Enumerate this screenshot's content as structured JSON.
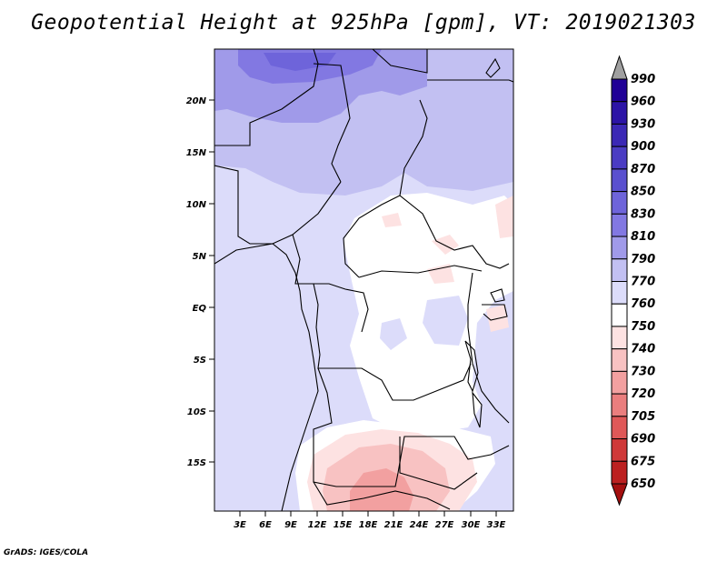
{
  "title": "Geopotential Height at 925hPa [gpm], VT: 2019021303",
  "footer": "GrADS: IGES/COLA",
  "lat_labels": [
    "20N",
    "15N",
    "10N",
    "5N",
    "EQ",
    "5S",
    "10S",
    "15S"
  ],
  "lon_labels": [
    "3E",
    "6E",
    "9E",
    "12E",
    "15E",
    "18E",
    "21E",
    "24E",
    "27E",
    "30E",
    "33E"
  ],
  "colorbar": {
    "levels": [
      "990",
      "960",
      "930",
      "900",
      "870",
      "850",
      "830",
      "810",
      "790",
      "770",
      "760",
      "750",
      "740",
      "730",
      "720",
      "705",
      "690",
      "675",
      "650"
    ],
    "colors": [
      "#200096",
      "#2c14a6",
      "#3b28b5",
      "#4b3cc3",
      "#5a50cf",
      "#6e64da",
      "#8278e2",
      "#a09ae9",
      "#c2c0f2",
      "#dcdcfa",
      "#ffffff",
      "#fde2e2",
      "#f8c2c2",
      "#f2a0a0",
      "#ea7e7e",
      "#df5858",
      "#cf3838",
      "#bc2020",
      "#a40f0f"
    ],
    "overflow_color": "#a0a0a0"
  }
}
